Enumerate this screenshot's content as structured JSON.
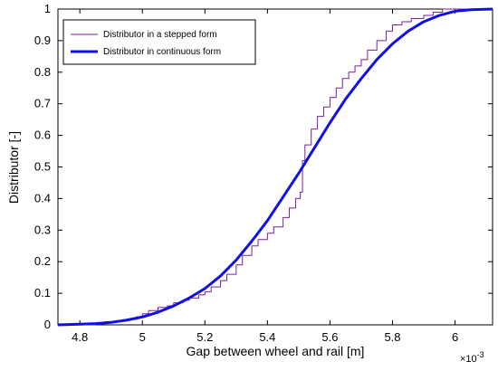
{
  "chart_data": {
    "type": "line",
    "xlabel": "Gap between wheel and rail [m]",
    "ylabel": "Distributor [-]",
    "x_multiplier_label": "×10",
    "x_multiplier_exponent": "-3",
    "xlim": [
      4.73,
      6.12
    ],
    "ylim": [
      0,
      1
    ],
    "x_ticks": [
      "4.8",
      "5",
      "5.2",
      "5.4",
      "5.6",
      "5.8",
      "6"
    ],
    "y_ticks": [
      "0",
      "0.1",
      "0.2",
      "0.3",
      "0.4",
      "0.5",
      "0.6",
      "0.7",
      "0.8",
      "0.9",
      "1"
    ],
    "grid": false,
    "legend_position": "top-left",
    "series": [
      {
        "name": "Distributor in a stepped form",
        "color": "#7a1fa2",
        "style": "stepped",
        "x": [
          4.73,
          4.85,
          4.88,
          4.92,
          4.95,
          4.98,
          5.0,
          5.02,
          5.05,
          5.08,
          5.1,
          5.13,
          5.15,
          5.18,
          5.2,
          5.22,
          5.25,
          5.27,
          5.3,
          5.32,
          5.35,
          5.37,
          5.4,
          5.42,
          5.45,
          5.47,
          5.49,
          5.505,
          5.51,
          5.512,
          5.52,
          5.54,
          5.56,
          5.58,
          5.6,
          5.62,
          5.64,
          5.66,
          5.68,
          5.7,
          5.72,
          5.75,
          5.78,
          5.8,
          5.83,
          5.86,
          5.9,
          5.93,
          5.96,
          6.0,
          6.12
        ],
        "y": [
          0.0,
          0.005,
          0.01,
          0.012,
          0.018,
          0.025,
          0.035,
          0.045,
          0.055,
          0.06,
          0.07,
          0.078,
          0.085,
          0.095,
          0.105,
          0.12,
          0.14,
          0.16,
          0.19,
          0.22,
          0.25,
          0.27,
          0.29,
          0.31,
          0.34,
          0.37,
          0.4,
          0.42,
          0.42,
          0.52,
          0.57,
          0.62,
          0.66,
          0.69,
          0.72,
          0.75,
          0.78,
          0.8,
          0.82,
          0.84,
          0.87,
          0.9,
          0.93,
          0.95,
          0.96,
          0.97,
          0.98,
          0.99,
          1.0,
          1.0,
          1.0
        ]
      },
      {
        "name": "Distributor in continuous form",
        "color": "#1010e6",
        "style": "smooth",
        "x": [
          4.73,
          4.8,
          4.85,
          4.9,
          4.95,
          5.0,
          5.05,
          5.1,
          5.15,
          5.2,
          5.25,
          5.3,
          5.35,
          5.4,
          5.45,
          5.5,
          5.55,
          5.6,
          5.65,
          5.7,
          5.75,
          5.8,
          5.85,
          5.9,
          5.95,
          6.0,
          6.05,
          6.12
        ],
        "y": [
          0.0,
          0.002,
          0.004,
          0.008,
          0.015,
          0.025,
          0.04,
          0.06,
          0.085,
          0.115,
          0.155,
          0.205,
          0.265,
          0.33,
          0.405,
          0.48,
          0.56,
          0.64,
          0.715,
          0.78,
          0.84,
          0.89,
          0.93,
          0.96,
          0.98,
          0.993,
          0.998,
          1.0
        ]
      }
    ]
  }
}
